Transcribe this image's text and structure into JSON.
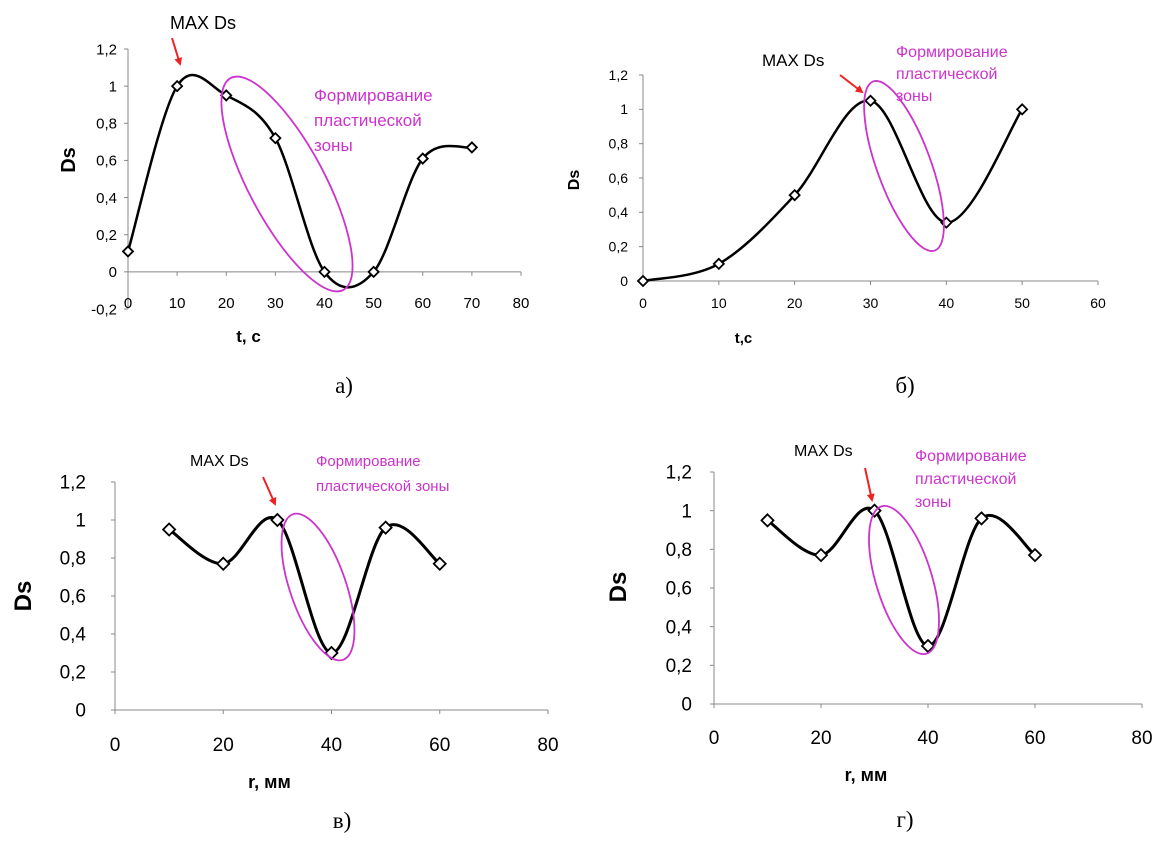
{
  "chart_data": [
    {
      "type": "line",
      "panel_label": "а)",
      "xlabel": "t, c",
      "ylabel": "Ds",
      "xlim": [
        0,
        80
      ],
      "ylim": [
        -0.2,
        1.2
      ],
      "x_ticks": [
        "0",
        "10",
        "20",
        "30",
        "40",
        "50",
        "60",
        "70",
        "80"
      ],
      "y_ticks": [
        "-0,2",
        "0",
        "0,2",
        "0,4",
        "0,6",
        "0,8",
        "1",
        "1,2"
      ],
      "x": [
        0,
        10,
        20,
        30,
        40,
        50,
        60,
        70
      ],
      "series": [
        {
          "values": [
            0.11,
            1.0,
            0.95,
            0.72,
            0.0,
            0.0,
            0.61,
            0.67
          ]
        }
      ],
      "annotations": {
        "max_label": "MAX Ds",
        "zone_label": [
          "Формирование",
          "пластической",
          "зоны"
        ]
      },
      "line_color": "#000000",
      "zone_color": "#cc33cc",
      "arrow_color": "#ee2222"
    },
    {
      "type": "line",
      "panel_label": "б)",
      "xlabel": "t,c",
      "ylabel": "Ds",
      "xlim": [
        0,
        60
      ],
      "ylim": [
        0,
        1.2
      ],
      "x_ticks": [
        "0",
        "10",
        "20",
        "30",
        "40",
        "50",
        "60"
      ],
      "y_ticks": [
        "0",
        "0,2",
        "0,4",
        "0,6",
        "0,8",
        "1",
        "1,2"
      ],
      "x": [
        0,
        10,
        20,
        30,
        40,
        50
      ],
      "series": [
        {
          "values": [
            0.0,
            0.1,
            0.5,
            1.05,
            0.34,
            1.0
          ]
        }
      ],
      "annotations": {
        "max_label": "MAX Ds",
        "zone_label": [
          "Формирование",
          "пластической",
          "зоны"
        ]
      },
      "line_color": "#000000",
      "zone_color": "#cc33cc",
      "arrow_color": "#ee2222"
    },
    {
      "type": "line",
      "panel_label": "в)",
      "xlabel": "r, мм",
      "ylabel": "Ds",
      "xlim": [
        0,
        80
      ],
      "ylim": [
        0,
        1.2
      ],
      "x_ticks": [
        "0",
        "20",
        "40",
        "60",
        "80"
      ],
      "y_ticks": [
        "0",
        "0,2",
        "0,4",
        "0,6",
        "0,8",
        "1",
        "1,2"
      ],
      "x": [
        10,
        20,
        30,
        40,
        50,
        60
      ],
      "series": [
        {
          "values": [
            0.95,
            0.77,
            1.0,
            0.3,
            0.96,
            0.77
          ]
        }
      ],
      "annotations": {
        "max_label": "MAX Ds",
        "zone_label": [
          "Формирование",
          "пластической зоны"
        ]
      },
      "line_color": "#000000",
      "zone_color": "#cc33cc",
      "arrow_color": "#ee2222"
    },
    {
      "type": "line",
      "panel_label": "г)",
      "xlabel": "r, мм",
      "ylabel": "Ds",
      "xlim": [
        0,
        80
      ],
      "ylim": [
        0,
        1.2
      ],
      "x_ticks": [
        "0",
        "20",
        "40",
        "60",
        "80"
      ],
      "y_ticks": [
        "0",
        "0,2",
        "0,4",
        "0,6",
        "0,8",
        "1",
        "1,2"
      ],
      "x": [
        10,
        20,
        30,
        40,
        50,
        60
      ],
      "series": [
        {
          "values": [
            0.95,
            0.77,
            1.0,
            0.3,
            0.96,
            0.77
          ]
        }
      ],
      "annotations": {
        "max_label": "MAX Ds",
        "zone_label": [
          "Формирование",
          "пластической",
          "зоны"
        ]
      },
      "line_color": "#000000",
      "zone_color": "#cc33cc",
      "arrow_color": "#ee2222"
    }
  ]
}
